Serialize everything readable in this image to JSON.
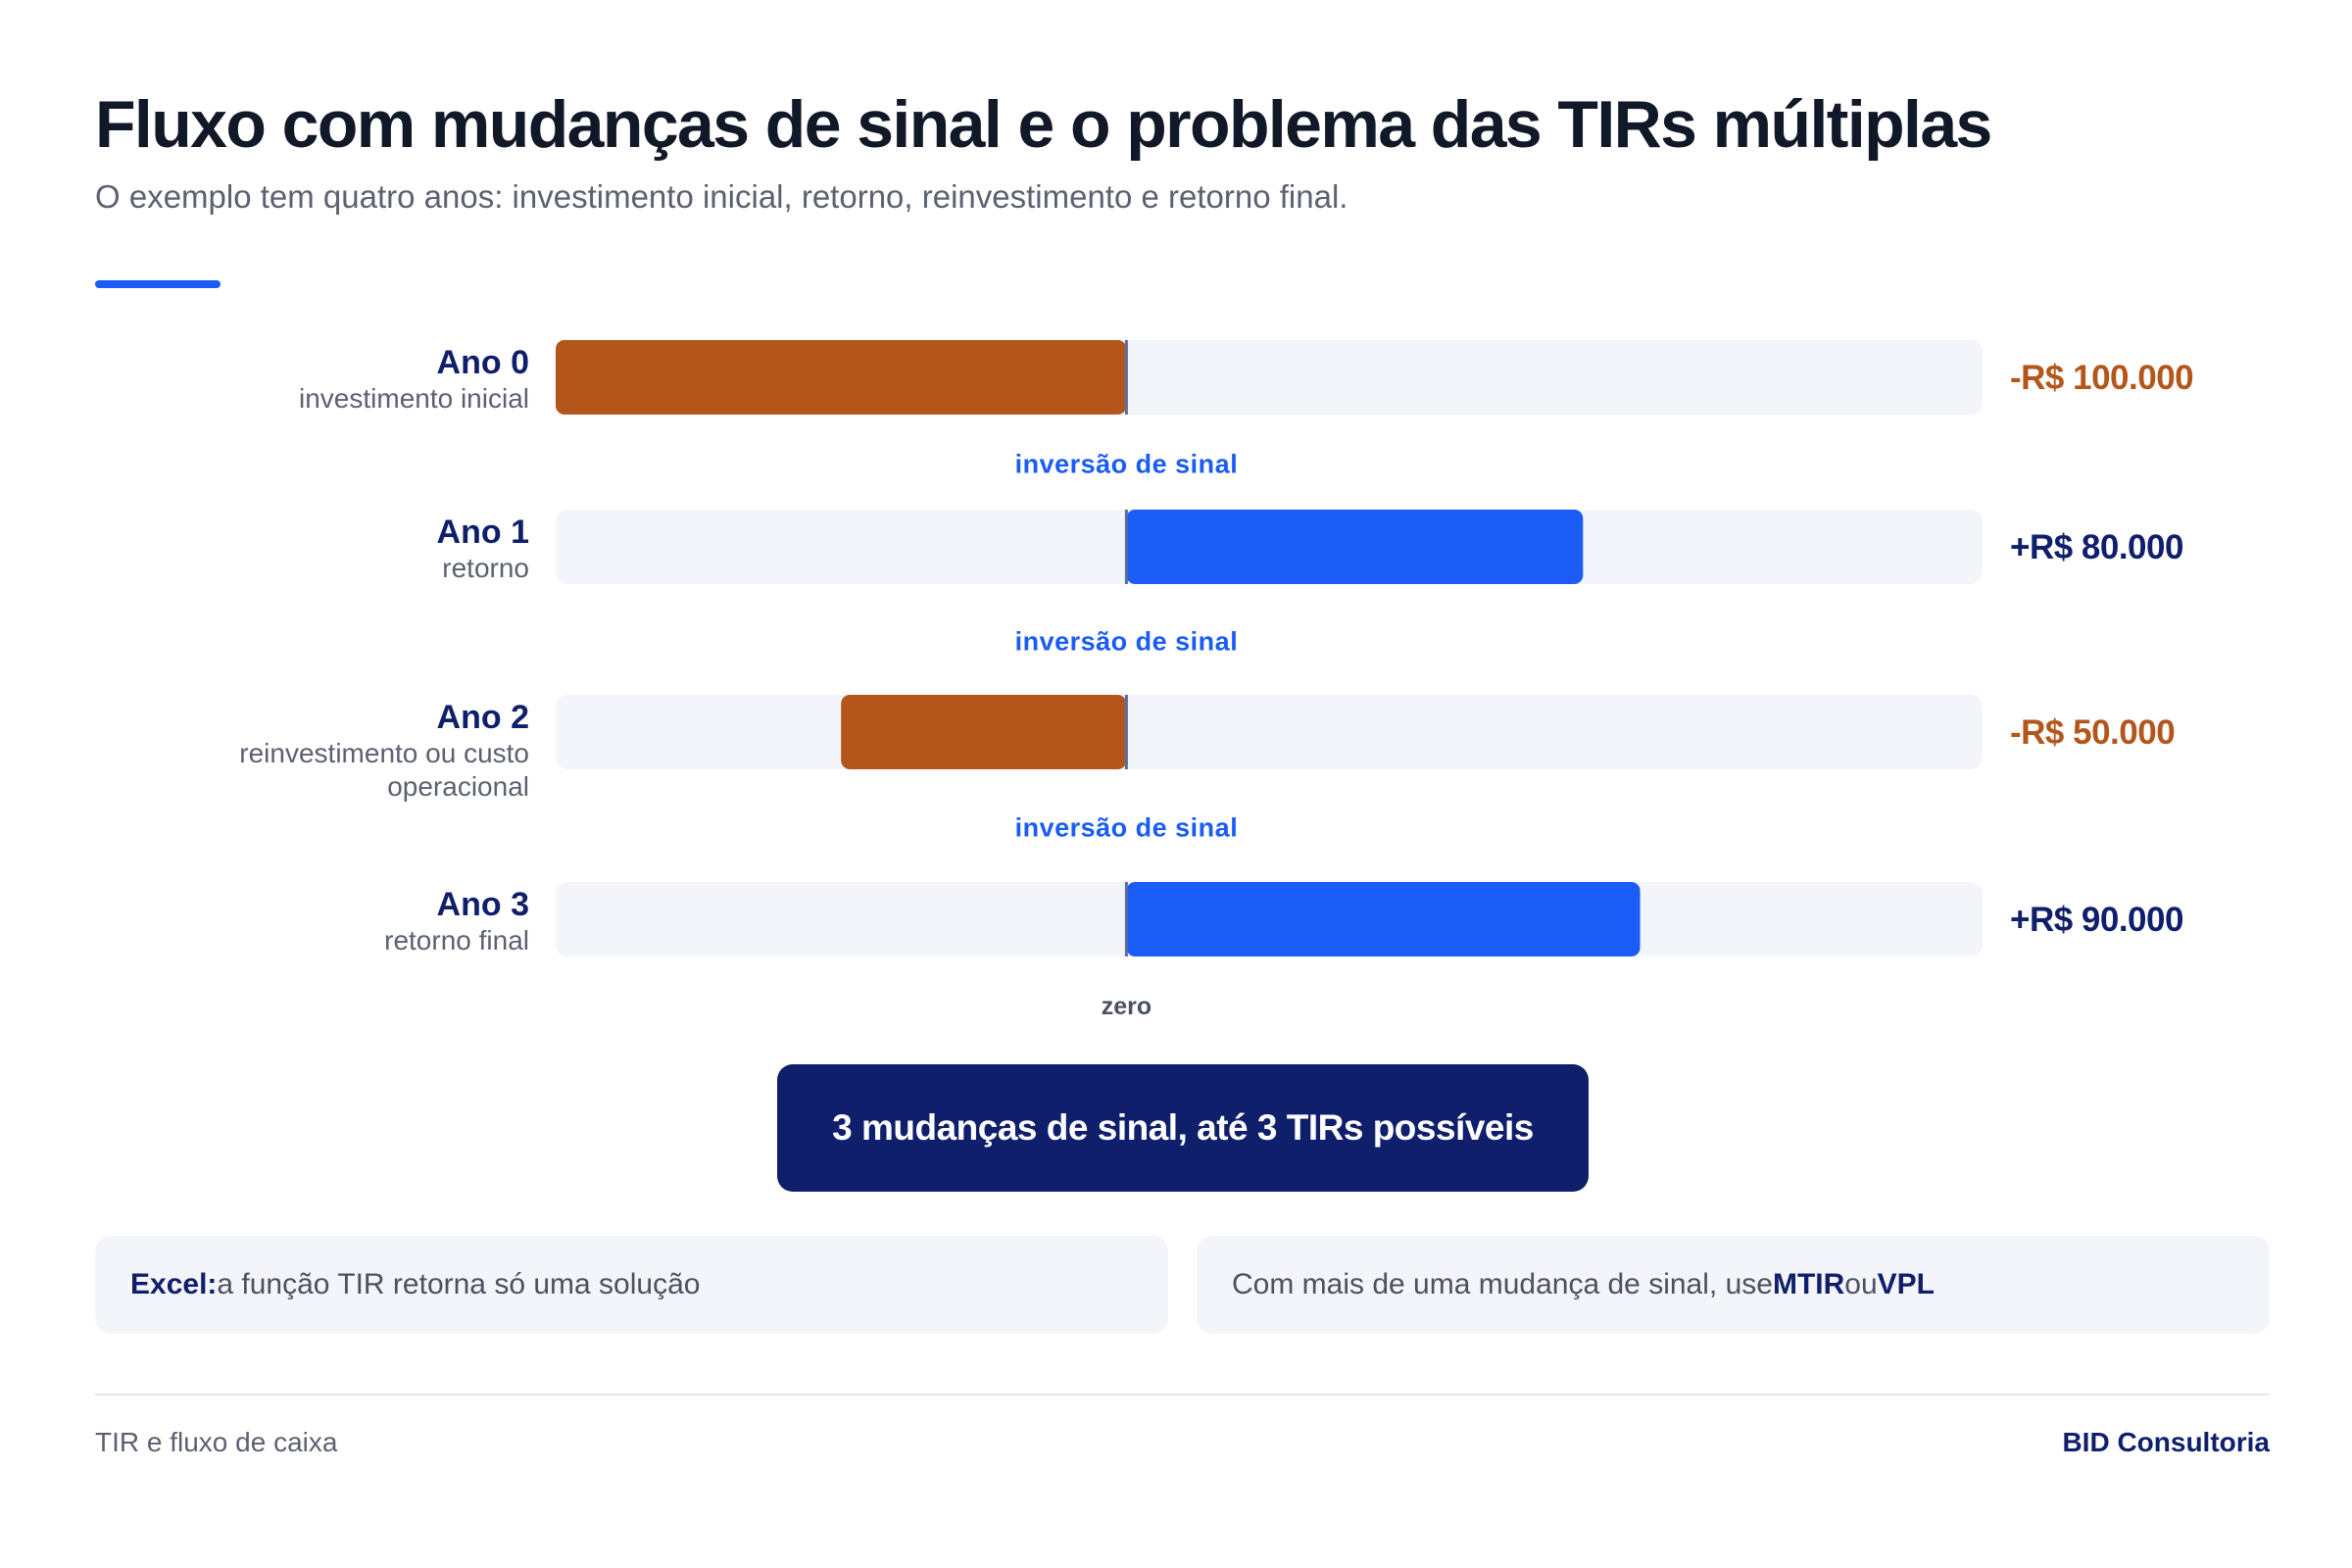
{
  "header": {
    "title": "Fluxo com mudanças de sinal e o problema das TIRs múltiplas",
    "subtitle": "O exemplo tem quatro anos: investimento inicial, retorno, reinvestimento e retorno final."
  },
  "colors": {
    "negative": "#b4561c",
    "positive": "#1a5cf5",
    "track": "#f3f5fa",
    "label_dark": "#0f1f6b",
    "inversion_text": "#1a5cf5"
  },
  "chart_data": {
    "type": "bar",
    "orientation": "horizontal-diverging",
    "categories": [
      "Ano 0",
      "Ano 1",
      "Ano 2",
      "Ano 3"
    ],
    "sublabels": [
      [
        "investimento inicial"
      ],
      [
        "retorno"
      ],
      [
        "reinvestimento ou custo",
        "operacional"
      ],
      [
        "retorno final"
      ]
    ],
    "values": [
      -100000,
      80000,
      -50000,
      90000
    ],
    "value_labels": [
      "-R$ 100.000",
      "+R$ 80.000",
      "-R$ 50.000",
      "+R$ 90.000"
    ],
    "xlim": [
      -100000,
      150000
    ],
    "zero_label": "zero",
    "inversion_label": "inversão de sinal",
    "grid": false
  },
  "summary": {
    "text": "3 mudanças de sinal, até 3 TIRs possíveis"
  },
  "notes": {
    "left_bold": "Excel:",
    "left_text": " a função TIR retorna só uma solução",
    "right_prefix": "Com mais de uma mudança de sinal, use ",
    "right_mtir": "MTIR",
    "right_mid": " ou ",
    "right_vpl": "VPL"
  },
  "footer": {
    "left": "TIR e fluxo de caixa",
    "right": "BID Consultoria"
  }
}
